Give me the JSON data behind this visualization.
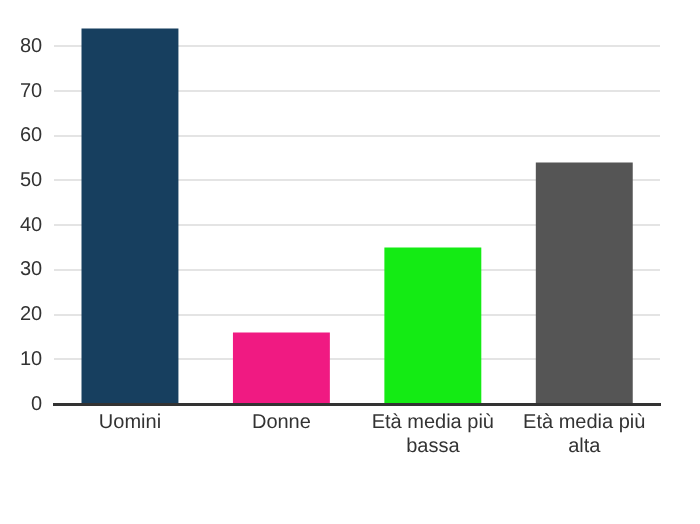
{
  "chart_data": {
    "type": "bar",
    "categories": [
      "Uomini",
      "Donne",
      "Età media più bassa",
      "Età media più alta"
    ],
    "values": [
      84,
      16,
      35,
      54
    ],
    "colors": [
      "#173f5f",
      "#f01a82",
      "#14eb14",
      "#555555"
    ],
    "ylim": [
      0,
      85
    ],
    "yticks": [
      0,
      10,
      20,
      30,
      40,
      50,
      60,
      70,
      80
    ],
    "grid": "y",
    "legend": false
  }
}
